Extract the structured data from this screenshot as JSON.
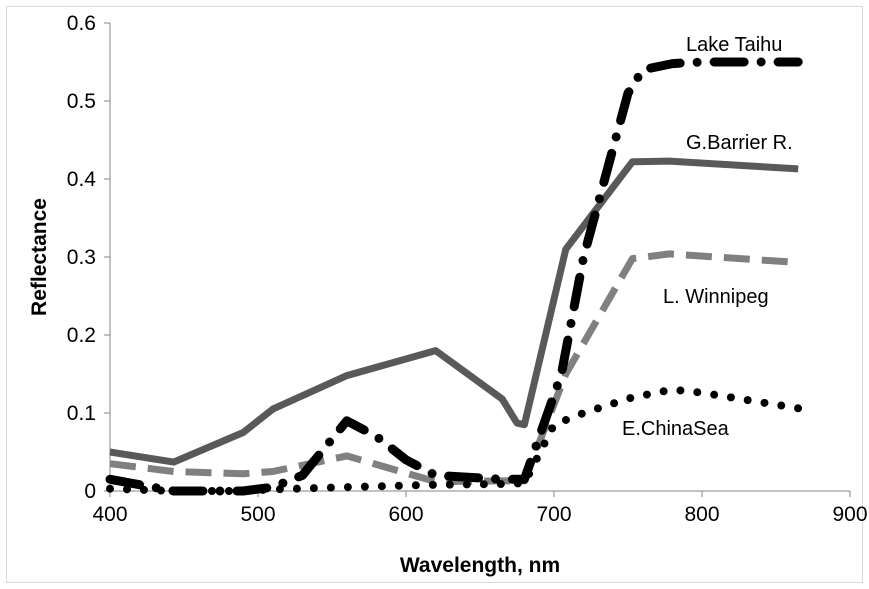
{
  "chart_data": {
    "type": "line",
    "title": "",
    "xlabel": "Wavelength, nm",
    "ylabel": "Reflectance",
    "xlim": [
      400,
      900
    ],
    "ylim": [
      0,
      0.6
    ],
    "xticks": [
      400,
      500,
      600,
      700,
      800,
      900
    ],
    "yticks": [
      0,
      0.1,
      0.2,
      0.3,
      0.4,
      0.5,
      0.6
    ],
    "xtick_labels": [
      "400",
      "500",
      "600",
      "700",
      "800",
      "900"
    ],
    "ytick_labels": [
      "0",
      "0.1",
      "0.2",
      "0.3",
      "0.4",
      "0.5",
      "0.6"
    ],
    "grid": false,
    "legend": "inline labels",
    "series": [
      {
        "name": "Lake Taihu",
        "style": "dash-dot",
        "color": "#000000",
        "x": [
          400,
          443,
          490,
          510,
          530,
          560,
          580,
          600,
          620,
          665,
          680,
          705,
          720,
          740,
          750,
          760,
          780,
          800,
          865
        ],
        "y": [
          0.015,
          0.0,
          0.0,
          0.005,
          0.02,
          0.09,
          0.07,
          0.04,
          0.02,
          0.015,
          0.015,
          0.15,
          0.3,
          0.44,
          0.51,
          0.54,
          0.548,
          0.55,
          0.55
        ]
      },
      {
        "name": "G.Barrier R.",
        "style": "solid",
        "color": "#595959",
        "x": [
          400,
          443,
          490,
          510,
          560,
          620,
          665,
          675,
          680,
          708,
          753,
          778,
          865
        ],
        "y": [
          0.05,
          0.037,
          0.075,
          0.105,
          0.148,
          0.18,
          0.118,
          0.087,
          0.085,
          0.31,
          0.422,
          0.423,
          0.413
        ]
      },
      {
        "name": "L. Winnipeg",
        "style": "dashed",
        "color": "#808080",
        "x": [
          400,
          443,
          490,
          510,
          560,
          620,
          665,
          680,
          708,
          753,
          778,
          865
        ],
        "y": [
          0.035,
          0.025,
          0.022,
          0.025,
          0.045,
          0.012,
          0.013,
          0.013,
          0.15,
          0.298,
          0.304,
          0.293
        ]
      },
      {
        "name": "E.ChinaSea",
        "style": "dotted",
        "color": "#000000",
        "x": [
          400,
          443,
          490,
          510,
          560,
          620,
          665,
          680,
          700,
          720,
          753,
          780,
          800,
          865
        ],
        "y": [
          0.003,
          0.0,
          0.0,
          0.002,
          0.005,
          0.008,
          0.009,
          0.01,
          0.085,
          0.1,
          0.12,
          0.13,
          0.126,
          0.106
        ]
      }
    ],
    "annotations": [
      "Lake Taihu",
      "G.Barrier R.",
      "L. Winnipeg",
      "E.ChinaSea"
    ]
  }
}
